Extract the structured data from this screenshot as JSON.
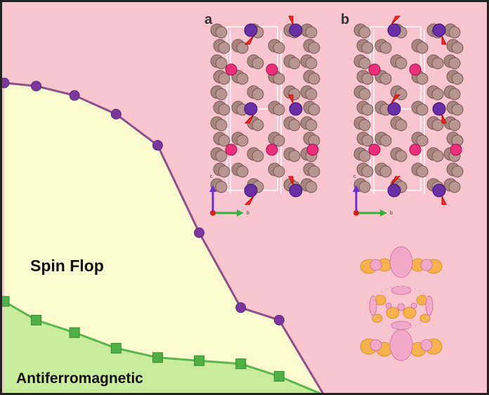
{
  "labels": {
    "spin_flop": "Spin Flop",
    "antiferromagnetic": "Antiferromagnetic",
    "panel_a": "a",
    "panel_b": "b",
    "axis_c": "c",
    "axis_b": "b"
  },
  "colors": {
    "background": "#f9c6cf",
    "spin_flop_region": "#fcfbcf",
    "afm_region": "#c9ec9c",
    "spin_flop_line": "#8f4f88",
    "spin_flop_marker": "#7d36a0",
    "afm_line": "#5bb64f",
    "afm_marker": "#4fb045",
    "atom_brown": "#a98580",
    "atom_magenta": "#ec2f7a",
    "atom_purple": "#6b2fa5",
    "spin_arrow": "#ff2a2a",
    "density_pink": "#f2a8c8",
    "density_orange": "#f6b24a"
  },
  "chart_data": {
    "type": "line",
    "series": [
      {
        "values": [
          1.0,
          0.99,
          0.96,
          0.9,
          0.8,
          0.52,
          0.28,
          0.24,
          0.0
        ]
      },
      {
        "values": [
          0.3,
          0.24,
          0.2,
          0.15,
          0.12,
          0.11,
          0.1,
          0.06,
          0.0
        ]
      }
    ],
    "x": [
      0.0,
      0.1,
      0.22,
      0.35,
      0.48,
      0.61,
      0.74,
      0.86,
      1.0
    ],
    "xlabel": "",
    "ylabel": ""
  }
}
